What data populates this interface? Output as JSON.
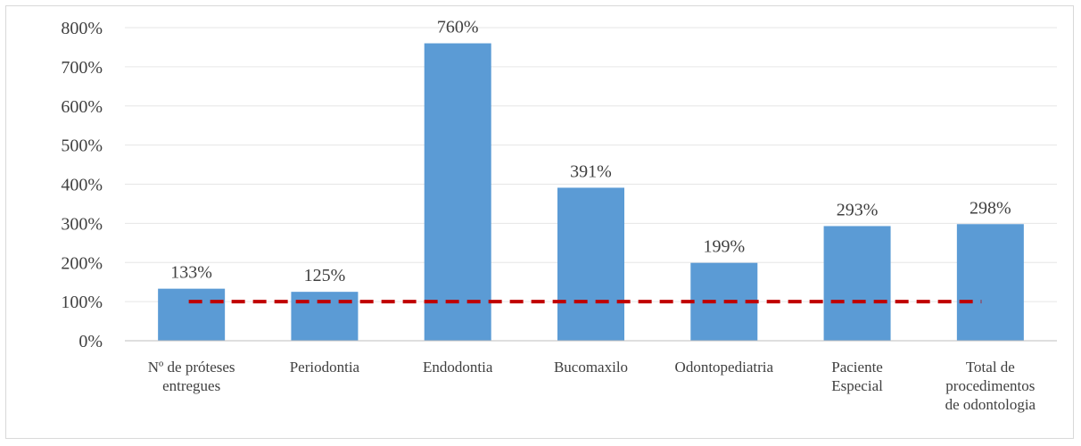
{
  "chart_data": {
    "type": "bar",
    "categories": [
      [
        "Nº de próteses",
        "entregues"
      ],
      [
        "Periodontia"
      ],
      [
        "Endodontia"
      ],
      [
        "Bucomaxilo"
      ],
      [
        "Odontopediatria"
      ],
      [
        "Paciente",
        "Especial"
      ],
      [
        "Total de",
        "procedimentos",
        "de odontologia"
      ]
    ],
    "values": [
      133,
      125,
      760,
      391,
      199,
      293,
      298
    ],
    "data_labels": [
      "133%",
      "125%",
      "760%",
      "391%",
      "199%",
      "293%",
      "298%"
    ],
    "ylim": [
      0,
      800
    ],
    "yticks": [
      0,
      100,
      200,
      300,
      400,
      500,
      600,
      700,
      800
    ],
    "ytick_labels": [
      "0%",
      "100%",
      "200%",
      "300%",
      "400%",
      "500%",
      "600%",
      "700%",
      "800%"
    ],
    "reference_line": {
      "value": 100,
      "style": "dashed",
      "color": "#c00000"
    },
    "bar_color": "#5b9bd5",
    "grid_color": "#e6e6e6",
    "grid": true,
    "legend": "none"
  }
}
